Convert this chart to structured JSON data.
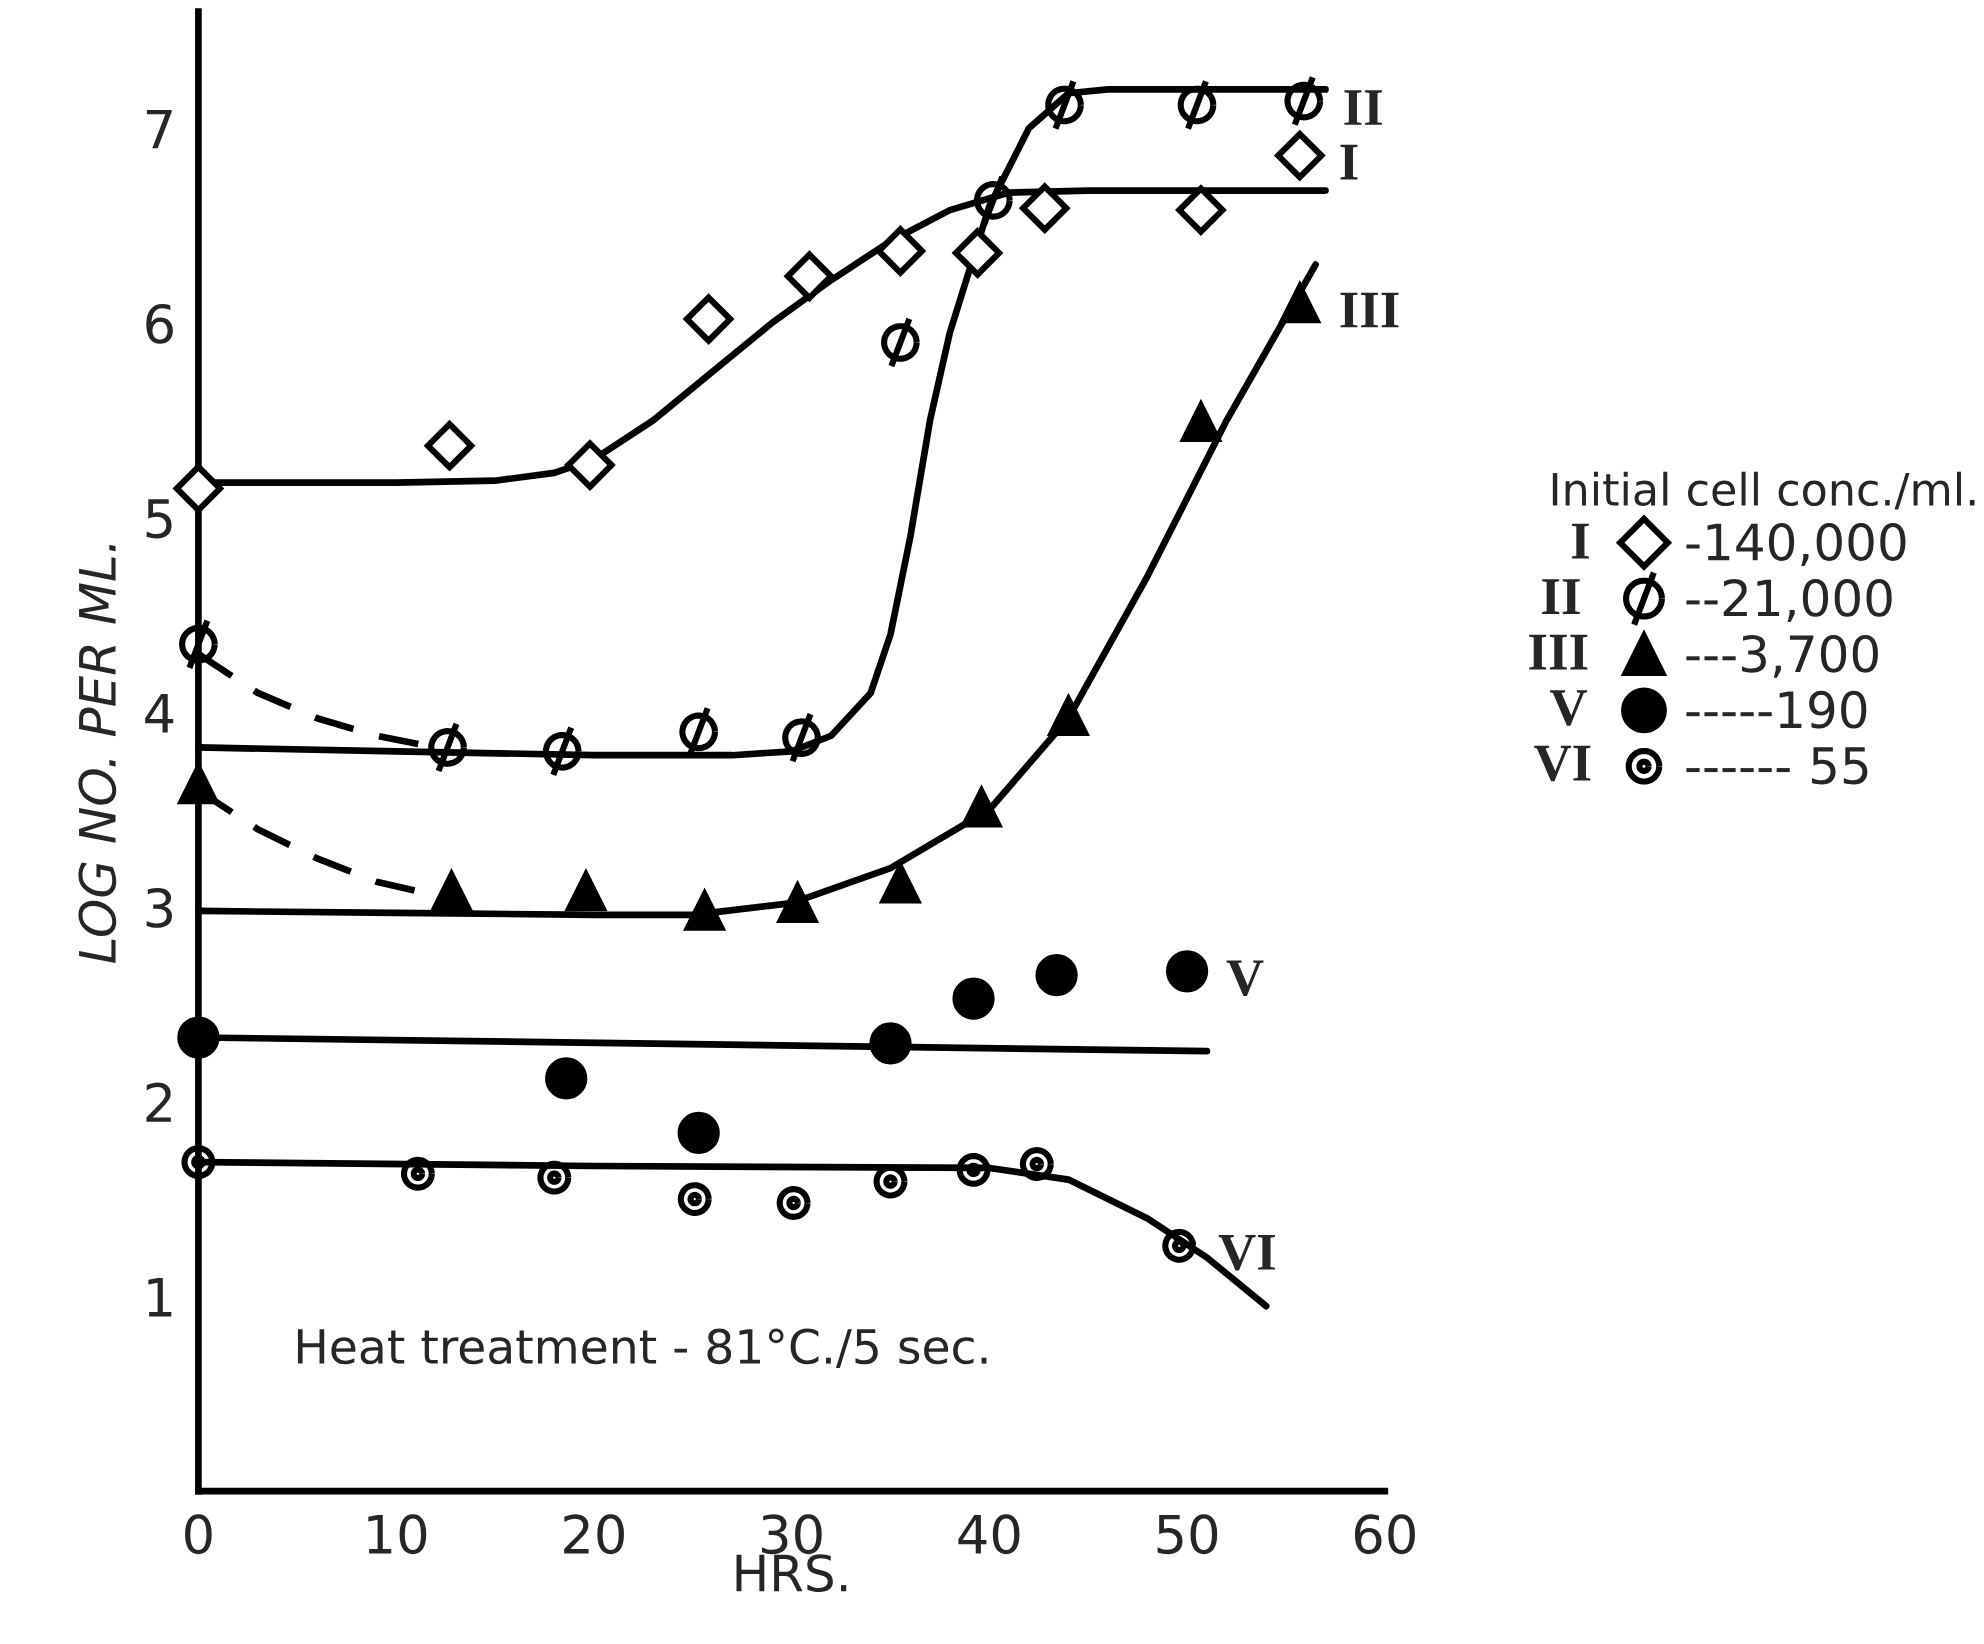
{
  "chart_data": {
    "type": "scatter",
    "xlabel": "HRS.",
    "ylabel": "LOG NO. PER ML.",
    "legend_title": "Initial cell conc./ml.",
    "legend": "right",
    "grid": false,
    "xlim": [
      0,
      60
    ],
    "ylim": [
      0,
      7.6
    ],
    "xticks": [
      0,
      10,
      20,
      30,
      40,
      50,
      60
    ],
    "yticks": [
      1,
      2,
      3,
      4,
      5,
      6,
      7
    ],
    "series": [
      {
        "name": "-140,000",
        "marker": "diamond",
        "color": "#000000",
        "x": [
          0,
          12.7,
          19.8,
          25.8,
          30.9,
          35.5,
          39.4,
          42.8,
          50.7,
          55.7
        ],
        "values": [
          5.15,
          5.37,
          5.27,
          6.02,
          6.24,
          6.37,
          6.36,
          6.59,
          6.58,
          6.86
        ]
      },
      {
        "name": "--21,000",
        "color": "#000000",
        "x": [
          0,
          12.6,
          18.4,
          25.3,
          30.5,
          35.5,
          40.2,
          43.8,
          50.5,
          55.9
        ],
        "values": [
          4.35,
          3.82,
          3.8,
          3.9,
          3.87,
          5.9,
          6.63,
          7.12,
          7.12,
          7.14
        ]
      },
      {
        "name": "---3,700",
        "marker": "triangle",
        "color": "#000000",
        "x": [
          0,
          12.8,
          19.6,
          25.6,
          30.3,
          35.5,
          39.6,
          44.0,
          50.7,
          55.7
        ],
        "values": [
          3.63,
          3.08,
          3.08,
          2.98,
          3.02,
          3.12,
          3.51,
          3.98,
          5.49,
          6.1
        ]
      },
      {
        "name": "-----190",
        "marker": "circle",
        "color": "#000000",
        "x": [
          0,
          18.6,
          25.3,
          35.0,
          39.2,
          43.4,
          50.0
        ],
        "values": [
          2.33,
          2.12,
          1.84,
          2.3,
          2.53,
          2.65,
          2.67
        ]
      },
      {
        "name": "------ 55",
        "color": "#000000",
        "x": [
          0,
          11.1,
          18.0,
          25.1,
          30.1,
          35.0,
          39.2,
          42.4,
          49.6
        ],
        "values": [
          1.69,
          1.63,
          1.61,
          1.5,
          1.48,
          1.59,
          1.65,
          1.68,
          1.26
        ]
      },
      {
        "type": "line",
        "marker": "none",
        "line_style": "solid",
        "color": "#000000",
        "x": [
          0,
          10,
          15,
          18,
          20,
          23,
          26,
          29,
          32,
          35,
          38,
          41,
          45,
          50,
          57
        ],
        "values": [
          5.18,
          5.18,
          5.19,
          5.23,
          5.3,
          5.5,
          5.75,
          6.0,
          6.22,
          6.42,
          6.58,
          6.67,
          6.68,
          6.68,
          6.68
        ]
      },
      {
        "type": "line",
        "marker": "none",
        "line_style": "solid",
        "color": "#000000",
        "x": [
          0,
          10,
          20,
          27,
          30,
          32,
          34,
          35,
          36,
          37,
          38,
          40,
          42,
          44,
          46,
          50,
          57
        ],
        "values": [
          3.82,
          3.8,
          3.78,
          3.78,
          3.8,
          3.88,
          4.1,
          4.4,
          4.9,
          5.5,
          5.95,
          6.6,
          7.0,
          7.18,
          7.2,
          7.2,
          7.2
        ]
      },
      {
        "type": "line",
        "marker": "none",
        "line_style": "dashed",
        "color": "#000000",
        "x": [
          0,
          3,
          6,
          9,
          12
        ],
        "values": [
          4.3,
          4.1,
          3.97,
          3.88,
          3.82
        ]
      },
      {
        "type": "line",
        "marker": "none",
        "line_style": "solid",
        "color": "#000000",
        "x": [
          0,
          10,
          20,
          25,
          30,
          35,
          40,
          44,
          48,
          52,
          56.5
        ],
        "values": [
          2.98,
          2.97,
          2.96,
          2.96,
          3.02,
          3.2,
          3.5,
          3.97,
          4.7,
          5.5,
          6.3
        ]
      },
      {
        "type": "line",
        "marker": "none",
        "line_style": "dashed",
        "color": "#000000",
        "x": [
          0,
          3,
          6,
          9,
          12
        ],
        "values": [
          3.6,
          3.4,
          3.25,
          3.13,
          3.06
        ]
      },
      {
        "type": "line",
        "marker": "none",
        "line_style": "solid",
        "color": "#000000",
        "x": [
          0,
          51
        ],
        "values": [
          2.33,
          2.26
        ]
      },
      {
        "type": "line",
        "marker": "none",
        "line_style": "solid",
        "color": "#000000",
        "x": [
          0,
          20,
          40,
          44,
          48,
          51,
          54
        ],
        "values": [
          1.69,
          1.67,
          1.66,
          1.6,
          1.4,
          1.2,
          0.95
        ]
      }
    ],
    "annotations": [
      "I",
      "II",
      "III",
      "V",
      "VI",
      "Heat treatment - 81°C./5 sec."
    ]
  }
}
